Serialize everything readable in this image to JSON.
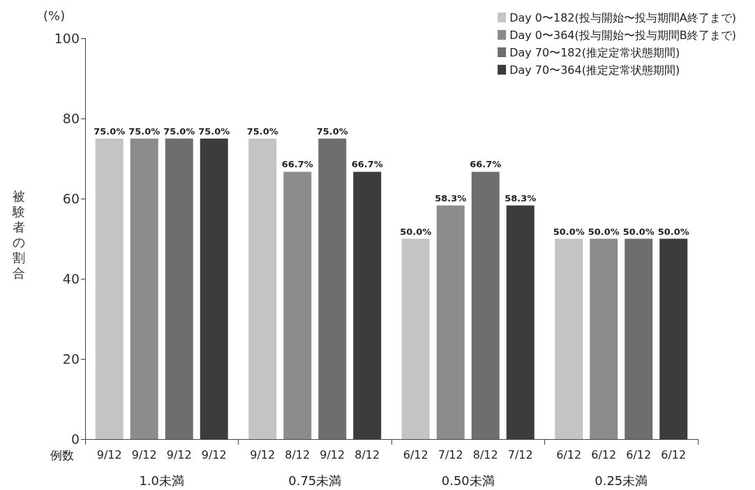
{
  "chart_data": {
    "type": "bar",
    "ylabel": "被験者の割合",
    "categories": [
      "1.0未満",
      "0.75未満",
      "0.50未満",
      "0.25未満"
    ],
    "series": [
      {
        "name": "Day 0〜182(投与開始〜投与期間A終了まで)",
        "color": "#c4c4c4",
        "values": [
          75.0,
          75.0,
          50.0,
          50.0
        ],
        "value_labels": [
          "75.0%",
          "75.0%",
          "50.0%",
          "50.0%"
        ]
      },
      {
        "name": "Day 0〜364(投与開始〜投与期間B終了まで)",
        "color": "#8c8c8c",
        "values": [
          75.0,
          66.7,
          58.3,
          50.0
        ],
        "value_labels": [
          "75.0%",
          "66.7%",
          "58.3%",
          "50.0%"
        ]
      },
      {
        "name": "Day 70〜182(推定定常状態期間)",
        "color": "#6e6e6e",
        "values": [
          75.0,
          75.0,
          66.7,
          50.0
        ],
        "value_labels": [
          "75.0%",
          "75.0%",
          "66.7%",
          "50.0%"
        ]
      },
      {
        "name": "Day 70〜364(推定定常状態期間)",
        "color": "#3c3c3c",
        "values": [
          75.0,
          66.7,
          58.3,
          50.0
        ],
        "value_labels": [
          "75.0%",
          "66.7%",
          "58.3%",
          "50.0%"
        ]
      }
    ],
    "ylim": [
      0,
      100
    ],
    "yticks": [
      0,
      20,
      40,
      60,
      80,
      100
    ],
    "grid": false,
    "legend": "top right",
    "annotations": [
      "(%)",
      "例数",
      "9/12",
      "9/12",
      "9/12",
      "9/12",
      "9/12",
      "8/12",
      "9/12",
      "8/12",
      "6/12",
      "7/12",
      "8/12",
      "7/12",
      "6/12",
      "6/12",
      "6/12",
      "6/12"
    ]
  }
}
